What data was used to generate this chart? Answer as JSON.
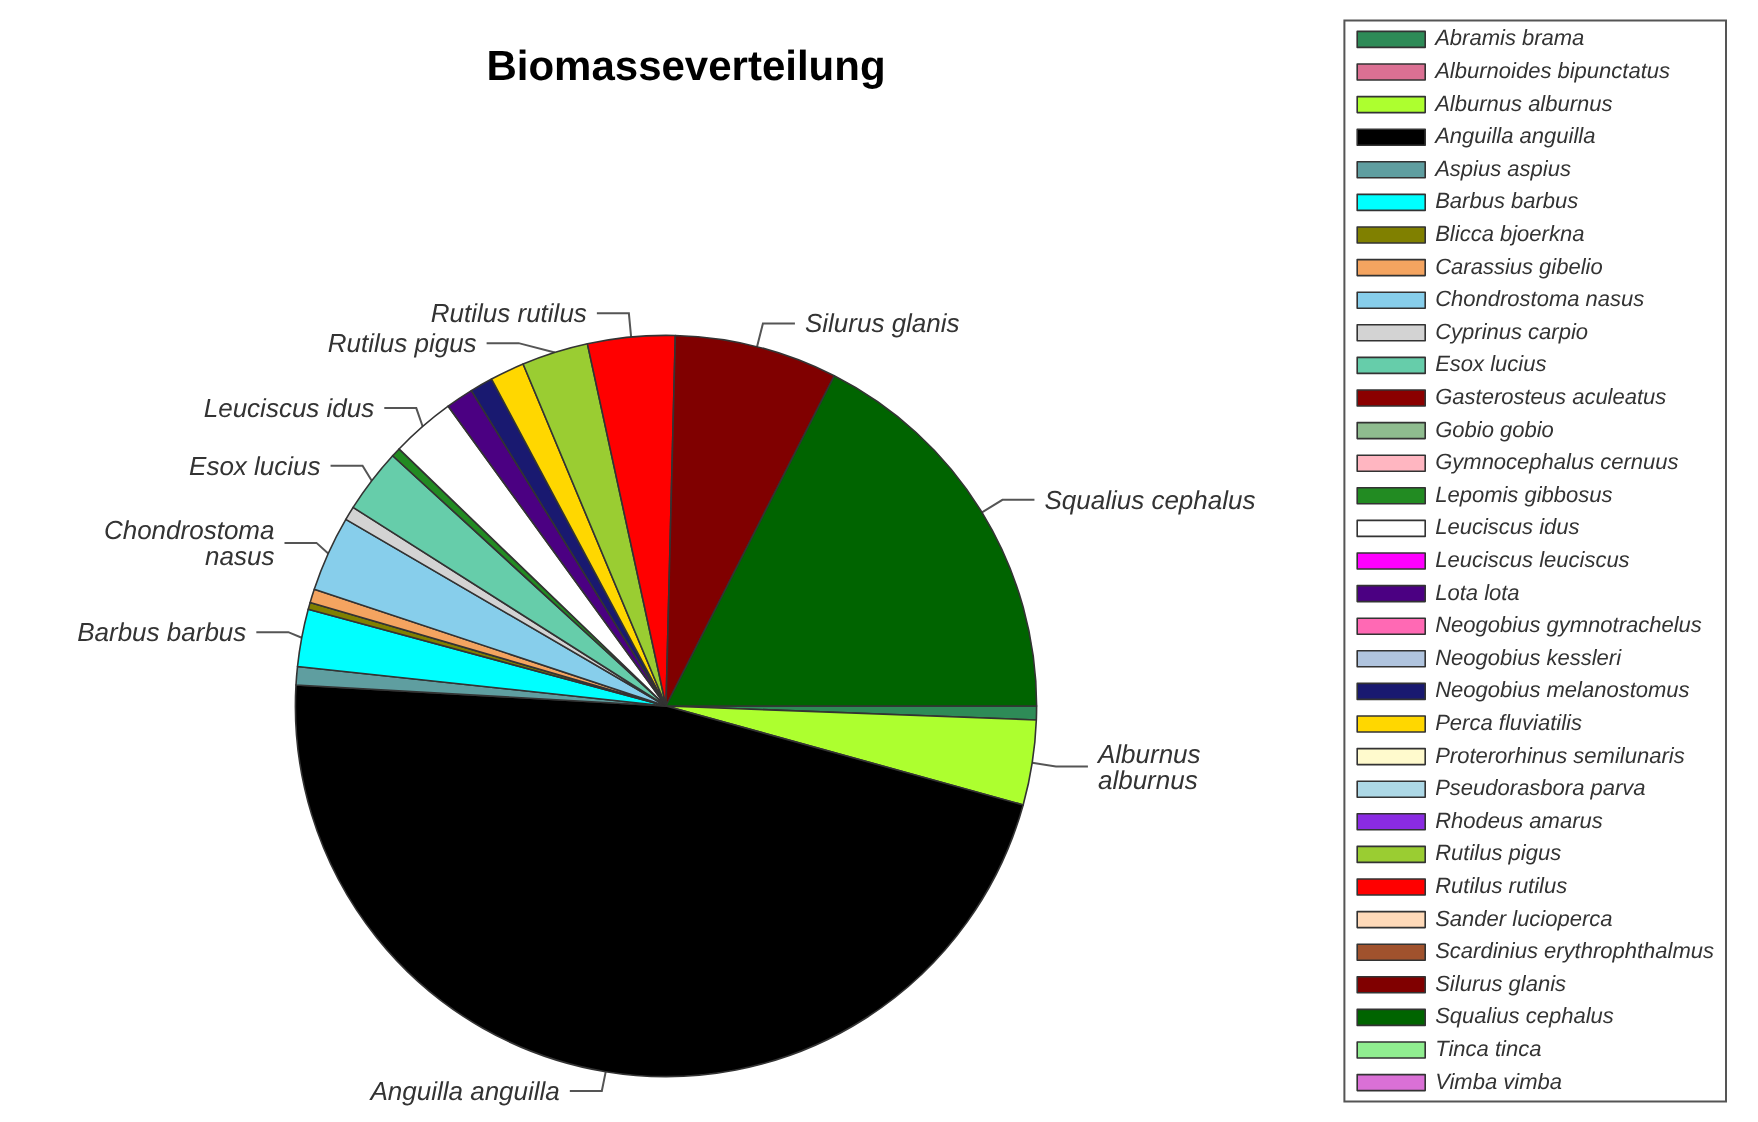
{
  "chart_data": {
    "type": "pie",
    "title": "Biomasseverteilung",
    "categories": [
      "Abramis brama",
      "Alburnoides bipunctatus",
      "Alburnus alburnus",
      "Anguilla anguilla",
      "Aspius aspius",
      "Barbus barbus",
      "Blicca bjoerkna",
      "Carassius gibelio",
      "Chondrostoma nasus",
      "Cyprinus carpio",
      "Esox lucius",
      "Gasterosteus aculeatus",
      "Gobio gobio",
      "Gymnocephalus cernuus",
      "Lepomis gibbosus",
      "Leuciscus idus",
      "Leuciscus leuciscus",
      "Lota lota",
      "Neogobius gymnotrachelus",
      "Neogobius kessleri",
      "Neogobius melanostomus",
      "Perca fluviatilis",
      "Proterorhinus semilunaris",
      "Pseudorasbora parva",
      "Rhodeus amarus",
      "Rutilus pigus",
      "Rutilus rutilus",
      "Sander lucioperca",
      "Scardinius erythrophthalmus",
      "Silurus glanis",
      "Squalius cephalus",
      "Tinca tinca",
      "Vimba vimba"
    ],
    "values": [
      0.6,
      0,
      3.7,
      46.6,
      0.8,
      2.5,
      0.3,
      0.6,
      3.3,
      0.6,
      2.8,
      0,
      0,
      0,
      0.4,
      2.8,
      0,
      1.2,
      0,
      0,
      1.0,
      1.5,
      0,
      0,
      0,
      2.9,
      3.8,
      0,
      0,
      7.1,
      17.5,
      0,
      0
    ],
    "colors": [
      "#2e8b57",
      "#db7093",
      "#adff2f",
      "#000000",
      "#5f9ea0",
      "#00ffff",
      "#808000",
      "#f4a460",
      "#87ceeb",
      "#d3d3d3",
      "#66cdaa",
      "#8b0000",
      "#8fbc8f",
      "#ffb6c1",
      "#228b22",
      "#ffffff",
      "#ff00ff",
      "#4b0082",
      "#ff69b4",
      "#b0c4de",
      "#191970",
      "#ffd700",
      "#fffacd",
      "#add8e6",
      "#8a2be2",
      "#9acd32",
      "#ff0000",
      "#ffdab9",
      "#a0522d",
      "#800000",
      "#006400",
      "#90ee90",
      "#da70d6"
    ],
    "value_labels": [
      null,
      null,
      "Alburnus\nalburnus",
      "Anguilla anguilla",
      null,
      "Barbus barbus",
      null,
      null,
      "Chondrostoma\nnasus",
      null,
      "Esox lucius",
      null,
      null,
      null,
      null,
      "Leuciscus idus",
      null,
      null,
      null,
      null,
      null,
      null,
      null,
      null,
      null,
      "Rutilus pigus",
      "Rutilus rutilus",
      null,
      null,
      "Silurus glanis",
      "Squalius cephalus",
      null,
      null
    ],
    "legend": "right"
  }
}
